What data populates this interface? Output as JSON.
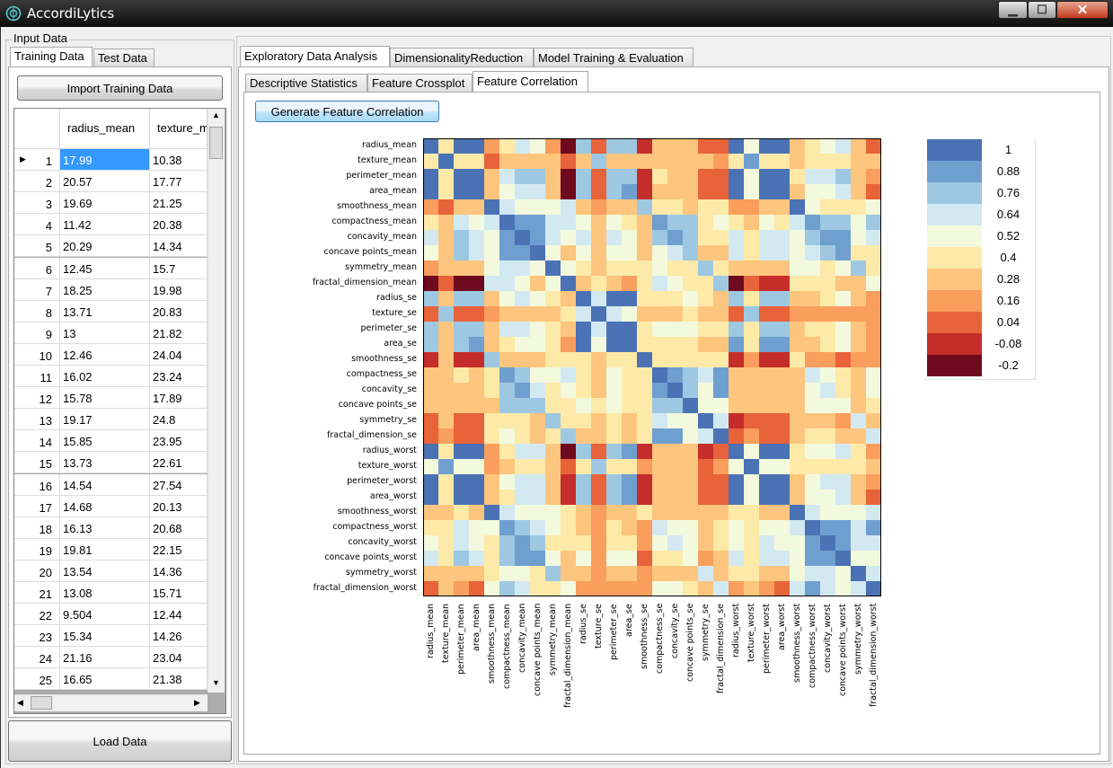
{
  "window": {
    "title": "AccordiLytics",
    "minimize": "▁",
    "maximize": "☐",
    "close": "✕"
  },
  "left_panel": {
    "group_title": "Input Data",
    "tabs": [
      "Training Data",
      "Test Data"
    ],
    "import_button": "Import Training Data",
    "load_button": "Load Data",
    "grid": {
      "columns": [
        "radius_mean",
        "texture_m"
      ],
      "rows": [
        {
          "n": "1",
          "c1": "17.99",
          "c2": "10.38"
        },
        {
          "n": "2",
          "c1": "20.57",
          "c2": "17.77"
        },
        {
          "n": "3",
          "c1": "19.69",
          "c2": "21.25"
        },
        {
          "n": "4",
          "c1": "11.42",
          "c2": "20.38"
        },
        {
          "n": "5",
          "c1": "20.29",
          "c2": "14.34"
        },
        {
          "n": "6",
          "c1": "12.45",
          "c2": "15.7"
        },
        {
          "n": "7",
          "c1": "18.25",
          "c2": "19.98"
        },
        {
          "n": "8",
          "c1": "13.71",
          "c2": "20.83"
        },
        {
          "n": "9",
          "c1": "13",
          "c2": "21.82"
        },
        {
          "n": "10",
          "c1": "12.46",
          "c2": "24.04"
        },
        {
          "n": "11",
          "c1": "16.02",
          "c2": "23.24"
        },
        {
          "n": "12",
          "c1": "15.78",
          "c2": "17.89"
        },
        {
          "n": "13",
          "c1": "19.17",
          "c2": "24.8"
        },
        {
          "n": "14",
          "c1": "15.85",
          "c2": "23.95"
        },
        {
          "n": "15",
          "c1": "13.73",
          "c2": "22.61"
        },
        {
          "n": "16",
          "c1": "14.54",
          "c2": "27.54"
        },
        {
          "n": "17",
          "c1": "14.68",
          "c2": "20.13"
        },
        {
          "n": "18",
          "c1": "16.13",
          "c2": "20.68"
        },
        {
          "n": "19",
          "c1": "19.81",
          "c2": "22.15"
        },
        {
          "n": "20",
          "c1": "13.54",
          "c2": "14.36"
        },
        {
          "n": "21",
          "c1": "13.08",
          "c2": "15.71"
        },
        {
          "n": "22",
          "c1": "9.504",
          "c2": "12.44"
        },
        {
          "n": "23",
          "c1": "15.34",
          "c2": "14.26"
        },
        {
          "n": "24",
          "c1": "21.16",
          "c2": "23.04"
        },
        {
          "n": "25",
          "c1": "16.65",
          "c2": "21.38"
        }
      ]
    }
  },
  "main_tabs": [
    "Exploratory Data Analysis",
    "DimensionalityReduction",
    "Model Training & Evaluation"
  ],
  "sub_tabs": [
    "Descriptive Statistics",
    "Feature Crossplot",
    "Feature Correlation"
  ],
  "generate_button": "Generate Feature Correlation",
  "chart_data": {
    "type": "heatmap",
    "features": [
      "radius_mean",
      "texture_mean",
      "perimeter_mean",
      "area_mean",
      "smoothness_mean",
      "compactness_mean",
      "concavity_mean",
      "concave points_mean",
      "symmetry_mean",
      "fractal_dimension_mean",
      "radius_se",
      "texture_se",
      "perimeter_se",
      "area_se",
      "smoothness_se",
      "compactness_se",
      "concavity_se",
      "concave points_se",
      "symmetry_se",
      "fractal_dimension_se",
      "radius_worst",
      "texture_worst",
      "perimeter_worst",
      "area_worst",
      "smoothness_worst",
      "compactness_worst",
      "concavity_worst",
      "concave points_worst",
      "symmetry_worst",
      "fractal_dimension_worst"
    ],
    "colorbar_labels": [
      "1",
      "0.88",
      "0.76",
      "0.64",
      "0.52",
      "0.4",
      "0.28",
      "0.16",
      "0.04",
      "-0.08",
      "-0.2"
    ],
    "colorbar_colors": [
      "#4a72b5",
      "#6f9fcf",
      "#9ec8e2",
      "#d3e9f2",
      "#f3f9dc",
      "#fde9a8",
      "#fdc57d",
      "#f99e5c",
      "#e8623a",
      "#c42d2a",
      "#6e0a1e"
    ],
    "matrix_levels": [
      [
        0,
        5,
        0,
        0,
        7,
        5,
        3,
        4,
        7,
        10,
        2,
        8,
        2,
        2,
        9,
        6,
        6,
        6,
        8,
        8,
        0,
        4,
        0,
        0,
        6,
        5,
        4,
        3,
        6,
        8
      ],
      [
        5,
        0,
        5,
        5,
        8,
        6,
        6,
        6,
        6,
        8,
        6,
        2,
        6,
        6,
        6,
        6,
        6,
        6,
        6,
        7,
        5,
        1,
        5,
        5,
        6,
        5,
        5,
        5,
        6,
        6
      ],
      [
        0,
        5,
        0,
        0,
        6,
        3,
        2,
        2,
        6,
        10,
        2,
        8,
        2,
        2,
        9,
        5,
        6,
        6,
        8,
        8,
        0,
        4,
        0,
        0,
        5,
        3,
        3,
        2,
        6,
        7
      ],
      [
        0,
        5,
        0,
        0,
        6,
        4,
        3,
        3,
        6,
        10,
        2,
        8,
        2,
        1,
        9,
        6,
        6,
        6,
        8,
        8,
        0,
        4,
        0,
        0,
        6,
        4,
        4,
        3,
        6,
        8
      ],
      [
        7,
        8,
        6,
        6,
        0,
        3,
        4,
        4,
        4,
        3,
        6,
        7,
        6,
        6,
        2,
        5,
        5,
        6,
        5,
        5,
        7,
        7,
        6,
        6,
        0,
        4,
        5,
        5,
        5,
        4
      ],
      [
        5,
        6,
        3,
        4,
        3,
        0,
        1,
        1,
        3,
        3,
        4,
        6,
        4,
        5,
        6,
        1,
        2,
        2,
        5,
        4,
        5,
        6,
        4,
        5,
        3,
        1,
        2,
        2,
        4,
        2
      ],
      [
        3,
        6,
        2,
        3,
        4,
        1,
        0,
        1,
        3,
        4,
        3,
        6,
        3,
        4,
        6,
        2,
        1,
        2,
        5,
        5,
        3,
        5,
        3,
        3,
        4,
        2,
        1,
        1,
        4,
        3
      ],
      [
        4,
        6,
        2,
        3,
        4,
        1,
        1,
        0,
        4,
        6,
        4,
        6,
        4,
        4,
        6,
        4,
        3,
        2,
        6,
        6,
        3,
        5,
        3,
        3,
        4,
        3,
        2,
        1,
        5,
        5
      ],
      [
        7,
        6,
        6,
        6,
        4,
        3,
        3,
        4,
        0,
        4,
        5,
        6,
        5,
        5,
        5,
        4,
        5,
        5,
        2,
        5,
        6,
        6,
        6,
        6,
        4,
        4,
        5,
        4,
        2,
        5
      ],
      [
        10,
        8,
        10,
        10,
        3,
        3,
        4,
        6,
        4,
        0,
        6,
        5,
        6,
        7,
        5,
        3,
        4,
        5,
        5,
        2,
        10,
        8,
        9,
        9,
        5,
        5,
        5,
        6,
        6,
        4
      ],
      [
        2,
        6,
        2,
        2,
        6,
        4,
        3,
        4,
        5,
        6,
        0,
        3,
        0,
        0,
        5,
        5,
        5,
        4,
        5,
        6,
        2,
        5,
        2,
        2,
        6,
        6,
        5,
        4,
        6,
        7
      ],
      [
        8,
        2,
        8,
        8,
        7,
        6,
        6,
        6,
        6,
        5,
        3,
        0,
        3,
        4,
        6,
        6,
        6,
        5,
        6,
        6,
        8,
        2,
        8,
        8,
        7,
        7,
        7,
        7,
        7,
        7
      ],
      [
        2,
        6,
        2,
        2,
        6,
        3,
        3,
        4,
        5,
        6,
        0,
        3,
        0,
        0,
        5,
        4,
        4,
        4,
        5,
        5,
        2,
        5,
        2,
        2,
        6,
        5,
        5,
        4,
        6,
        7
      ],
      [
        2,
        6,
        2,
        1,
        6,
        5,
        4,
        4,
        5,
        7,
        0,
        4,
        0,
        0,
        5,
        5,
        5,
        5,
        6,
        6,
        1,
        5,
        1,
        1,
        6,
        6,
        5,
        4,
        6,
        7
      ],
      [
        9,
        6,
        9,
        9,
        2,
        6,
        6,
        6,
        5,
        5,
        5,
        6,
        5,
        5,
        0,
        5,
        5,
        5,
        5,
        5,
        9,
        7,
        9,
        9,
        5,
        7,
        7,
        8,
        7,
        7
      ],
      [
        6,
        6,
        5,
        6,
        5,
        1,
        2,
        4,
        4,
        3,
        5,
        6,
        4,
        5,
        5,
        0,
        1,
        2,
        3,
        1,
        6,
        6,
        6,
        6,
        6,
        3,
        4,
        5,
        6,
        4
      ],
      [
        6,
        6,
        6,
        6,
        5,
        2,
        1,
        3,
        5,
        4,
        5,
        6,
        4,
        5,
        5,
        1,
        0,
        2,
        4,
        1,
        6,
        6,
        6,
        6,
        6,
        4,
        3,
        5,
        6,
        4
      ],
      [
        6,
        6,
        6,
        6,
        6,
        2,
        2,
        2,
        5,
        5,
        4,
        5,
        4,
        5,
        5,
        2,
        2,
        0,
        4,
        4,
        6,
        6,
        6,
        6,
        6,
        4,
        4,
        4,
        6,
        5
      ],
      [
        8,
        6,
        8,
        8,
        5,
        5,
        5,
        6,
        2,
        5,
        5,
        6,
        5,
        6,
        5,
        3,
        4,
        4,
        0,
        3,
        9,
        8,
        8,
        8,
        6,
        6,
        6,
        7,
        3,
        6
      ],
      [
        8,
        7,
        8,
        8,
        5,
        4,
        5,
        6,
        5,
        2,
        6,
        6,
        5,
        6,
        5,
        1,
        1,
        4,
        3,
        0,
        8,
        7,
        8,
        8,
        6,
        5,
        5,
        6,
        6,
        3
      ],
      [
        0,
        5,
        0,
        0,
        7,
        5,
        3,
        3,
        6,
        10,
        2,
        8,
        2,
        1,
        9,
        6,
        6,
        6,
        9,
        8,
        0,
        4,
        0,
        0,
        5,
        4,
        4,
        3,
        5,
        7
      ],
      [
        4,
        1,
        4,
        4,
        7,
        6,
        5,
        5,
        6,
        8,
        5,
        2,
        5,
        5,
        7,
        6,
        6,
        6,
        8,
        7,
        4,
        0,
        4,
        4,
        5,
        5,
        5,
        5,
        5,
        6
      ],
      [
        0,
        5,
        0,
        0,
        6,
        4,
        3,
        3,
        6,
        9,
        2,
        8,
        2,
        1,
        9,
        6,
        6,
        6,
        8,
        8,
        0,
        4,
        0,
        0,
        6,
        4,
        3,
        3,
        6,
        7
      ],
      [
        0,
        5,
        0,
        0,
        6,
        5,
        3,
        3,
        6,
        9,
        2,
        8,
        2,
        1,
        9,
        6,
        6,
        6,
        8,
        8,
        0,
        4,
        0,
        0,
        6,
        4,
        4,
        3,
        6,
        8
      ],
      [
        6,
        6,
        5,
        6,
        0,
        3,
        4,
        4,
        4,
        5,
        6,
        7,
        6,
        6,
        5,
        6,
        6,
        6,
        6,
        6,
        5,
        5,
        6,
        6,
        0,
        3,
        4,
        4,
        4,
        3
      ],
      [
        5,
        5,
        3,
        4,
        4,
        1,
        2,
        3,
        4,
        5,
        6,
        7,
        5,
        6,
        7,
        3,
        4,
        4,
        6,
        5,
        4,
        5,
        4,
        4,
        3,
        0,
        1,
        1,
        3,
        1
      ],
      [
        4,
        5,
        3,
        4,
        5,
        2,
        1,
        2,
        5,
        5,
        5,
        7,
        5,
        5,
        7,
        4,
        3,
        4,
        6,
        5,
        4,
        5,
        3,
        4,
        4,
        1,
        0,
        1,
        3,
        3
      ],
      [
        3,
        5,
        2,
        3,
        5,
        2,
        1,
        1,
        4,
        6,
        4,
        7,
        4,
        4,
        8,
        5,
        5,
        4,
        7,
        6,
        3,
        5,
        3,
        3,
        4,
        1,
        1,
        0,
        4,
        4
      ],
      [
        6,
        6,
        6,
        6,
        5,
        4,
        4,
        5,
        2,
        6,
        6,
        7,
        6,
        6,
        7,
        6,
        6,
        6,
        3,
        6,
        5,
        5,
        6,
        6,
        4,
        3,
        3,
        4,
        0,
        3
      ],
      [
        8,
        6,
        7,
        8,
        4,
        2,
        3,
        5,
        5,
        4,
        7,
        7,
        7,
        7,
        7,
        4,
        4,
        5,
        6,
        3,
        7,
        6,
        7,
        8,
        3,
        1,
        3,
        4,
        3,
        0
      ]
    ]
  }
}
